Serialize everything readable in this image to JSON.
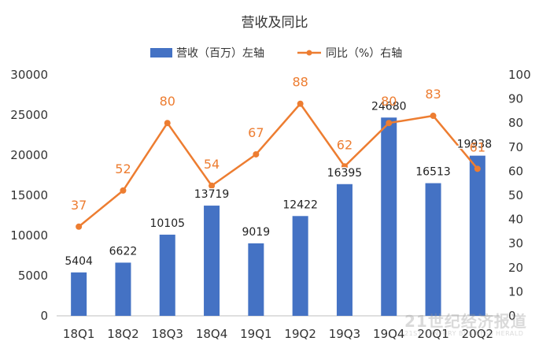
{
  "chart_data": {
    "type": "bar",
    "title": "营收及同比",
    "categories": [
      "18Q1",
      "18Q2",
      "18Q3",
      "18Q4",
      "19Q1",
      "19Q2",
      "19Q3",
      "19Q4",
      "20Q1",
      "20Q2"
    ],
    "series": [
      {
        "name": "营收（百万）左轴",
        "type": "bar",
        "axis": "left",
        "color": "#4472C4",
        "values": [
          5404,
          6622,
          10105,
          13719,
          9019,
          12422,
          16395,
          24680,
          16513,
          19938
        ]
      },
      {
        "name": "同比（%）右轴",
        "type": "line",
        "axis": "right",
        "color": "#ED7D31",
        "values": [
          37,
          52,
          80,
          54,
          67,
          88,
          62,
          80,
          83,
          61
        ]
      }
    ],
    "y_left": {
      "min": 0,
      "max": 30000,
      "ticks": [
        0,
        5000,
        10000,
        15000,
        20000,
        25000,
        30000
      ]
    },
    "y_right": {
      "min": 0,
      "max": 100,
      "ticks": [
        0,
        10,
        20,
        30,
        40,
        50,
        60,
        70,
        80,
        90,
        100
      ]
    },
    "legend_position": "top-center",
    "grid": false
  },
  "watermark": {
    "line1": "21世纪经济报道",
    "line2": "21ST CENTURY BUSINESS HERALD"
  }
}
